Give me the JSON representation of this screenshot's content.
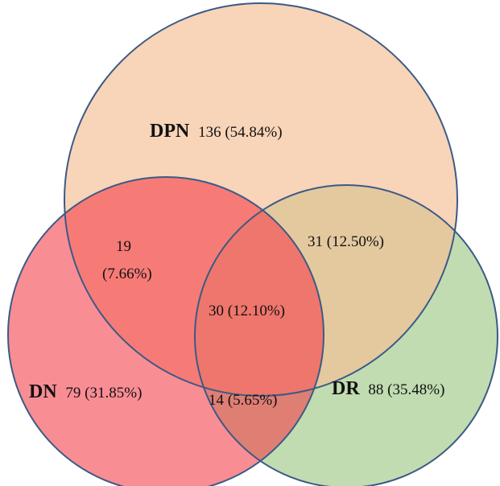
{
  "sets": [
    {
      "id": "dpn",
      "name": "DPN",
      "value": "136 (54.84%)",
      "fill": "#f8c9a6"
    },
    {
      "id": "dr",
      "name": "DR",
      "value": "88 (35.48%)",
      "fill": "#b5d6a2"
    },
    {
      "id": "dn",
      "name": "DN",
      "value": "79 (31.85%)",
      "fill": "#f56e76"
    }
  ],
  "overlaps": {
    "dpn_dn_line1": "19",
    "dpn_dn_line2": "(7.66%)",
    "dpn_dr": "31 (12.50%)",
    "all": "30 (12.10%)",
    "dn_dr": "14 (5.65%)"
  },
  "colors": {
    "outline": "#3b5a85",
    "dpn": "#f8c9a6",
    "dr": "#b5d6a2",
    "dn": "#f56e76"
  }
}
